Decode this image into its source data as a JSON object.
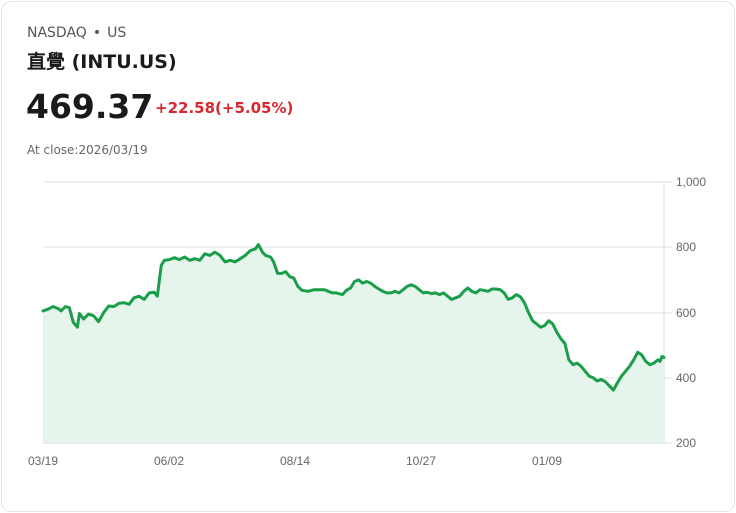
{
  "header": {
    "exchange": "NASDAQ",
    "separator": "•",
    "region": "US",
    "title": "直覺 (INTU.US)",
    "price": "469.37",
    "change": "+22.58(+5.05%)",
    "close_label": "At close:2026/03/19"
  },
  "colors": {
    "line": "#1a9e4a",
    "fill": "#e6f5ec",
    "change": "#d8282e",
    "grid": "#e2e2e2"
  },
  "chart_data": {
    "type": "area",
    "title": "直覺 (INTU.US)",
    "xlabel": "",
    "ylabel": "",
    "ylim": [
      200,
      1000
    ],
    "yticks": [
      "1,000",
      "800",
      "600",
      "400",
      "200"
    ],
    "xticks": [
      "03/19",
      "06/02",
      "08/14",
      "10/27",
      "01/09"
    ],
    "grid": true,
    "legend": "none",
    "series": [
      {
        "name": "INTU.US",
        "points": [
          [
            0,
            605
          ],
          [
            5,
            610
          ],
          [
            10,
            618
          ],
          [
            15,
            612
          ],
          [
            18,
            605
          ],
          [
            22,
            618
          ],
          [
            26,
            615
          ],
          [
            30,
            570
          ],
          [
            34,
            555
          ],
          [
            36,
            597
          ],
          [
            40,
            580
          ],
          [
            45,
            595
          ],
          [
            50,
            590
          ],
          [
            55,
            572
          ],
          [
            60,
            600
          ],
          [
            65,
            620
          ],
          [
            70,
            618
          ],
          [
            75,
            628
          ],
          [
            80,
            630
          ],
          [
            85,
            625
          ],
          [
            90,
            645
          ],
          [
            95,
            650
          ],
          [
            100,
            640
          ],
          [
            105,
            660
          ],
          [
            110,
            662
          ],
          [
            113,
            650
          ],
          [
            117,
            745
          ],
          [
            120,
            760
          ],
          [
            125,
            762
          ],
          [
            130,
            768
          ],
          [
            135,
            762
          ],
          [
            140,
            770
          ],
          [
            145,
            760
          ],
          [
            150,
            765
          ],
          [
            155,
            760
          ],
          [
            160,
            780
          ],
          [
            165,
            775
          ],
          [
            170,
            785
          ],
          [
            175,
            775
          ],
          [
            180,
            755
          ],
          [
            185,
            760
          ],
          [
            190,
            755
          ],
          [
            195,
            765
          ],
          [
            200,
            775
          ],
          [
            205,
            790
          ],
          [
            210,
            795
          ],
          [
            213,
            808
          ],
          [
            217,
            785
          ],
          [
            220,
            775
          ],
          [
            225,
            770
          ],
          [
            228,
            755
          ],
          [
            232,
            720
          ],
          [
            236,
            720
          ],
          [
            240,
            725
          ],
          [
            244,
            710
          ],
          [
            248,
            705
          ],
          [
            252,
            680
          ],
          [
            256,
            668
          ],
          [
            262,
            665
          ],
          [
            268,
            670
          ],
          [
            272,
            670
          ],
          [
            278,
            670
          ],
          [
            282,
            665
          ],
          [
            286,
            660
          ],
          [
            290,
            660
          ],
          [
            296,
            655
          ],
          [
            300,
            668
          ],
          [
            304,
            675
          ],
          [
            308,
            695
          ],
          [
            312,
            700
          ],
          [
            316,
            690
          ],
          [
            320,
            695
          ],
          [
            324,
            690
          ],
          [
            328,
            680
          ],
          [
            332,
            672
          ],
          [
            336,
            665
          ],
          [
            340,
            660
          ],
          [
            344,
            660
          ],
          [
            348,
            665
          ],
          [
            352,
            660
          ],
          [
            356,
            670
          ],
          [
            360,
            680
          ],
          [
            364,
            685
          ],
          [
            368,
            680
          ],
          [
            372,
            670
          ],
          [
            376,
            660
          ],
          [
            380,
            662
          ],
          [
            384,
            658
          ],
          [
            388,
            660
          ],
          [
            392,
            655
          ],
          [
            396,
            660
          ],
          [
            400,
            650
          ],
          [
            404,
            640
          ],
          [
            408,
            645
          ],
          [
            412,
            650
          ],
          [
            416,
            665
          ],
          [
            420,
            675
          ],
          [
            424,
            665
          ],
          [
            428,
            660
          ],
          [
            432,
            670
          ],
          [
            436,
            668
          ],
          [
            440,
            665
          ],
          [
            444,
            672
          ],
          [
            448,
            672
          ],
          [
            452,
            670
          ],
          [
            456,
            660
          ],
          [
            460,
            640
          ],
          [
            464,
            645
          ],
          [
            468,
            655
          ],
          [
            472,
            648
          ],
          [
            476,
            630
          ],
          [
            480,
            600
          ],
          [
            484,
            575
          ],
          [
            488,
            565
          ],
          [
            492,
            555
          ],
          [
            496,
            560
          ],
          [
            500,
            575
          ],
          [
            504,
            565
          ],
          [
            508,
            540
          ],
          [
            512,
            520
          ],
          [
            516,
            505
          ],
          [
            520,
            455
          ],
          [
            524,
            440
          ],
          [
            528,
            445
          ],
          [
            532,
            435
          ],
          [
            536,
            420
          ],
          [
            540,
            405
          ],
          [
            544,
            400
          ],
          [
            548,
            390
          ],
          [
            552,
            395
          ],
          [
            556,
            388
          ],
          [
            560,
            375
          ],
          [
            564,
            362
          ],
          [
            568,
            385
          ],
          [
            572,
            405
          ],
          [
            576,
            420
          ],
          [
            580,
            435
          ],
          [
            584,
            455
          ],
          [
            588,
            478
          ],
          [
            592,
            470
          ],
          [
            596,
            450
          ],
          [
            600,
            440
          ],
          [
            604,
            445
          ],
          [
            608,
            455
          ],
          [
            610,
            450
          ],
          [
            612,
            465
          ],
          [
            614,
            462
          ]
        ]
      }
    ]
  }
}
